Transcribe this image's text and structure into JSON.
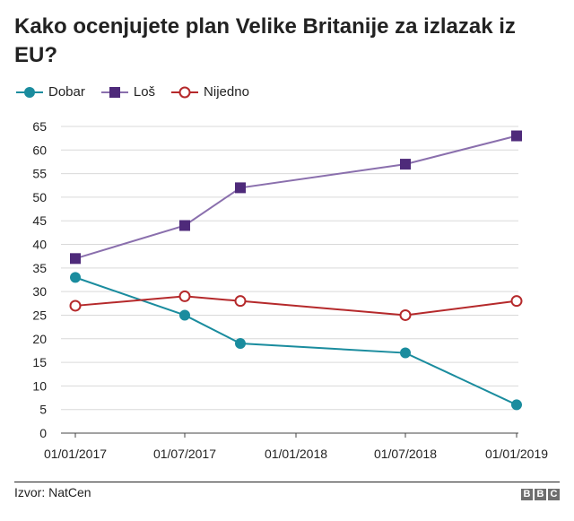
{
  "chart_data": {
    "type": "line",
    "title": "Kako ocenjujete plan Velike Britanije za izlazak iz EU?",
    "xlabel": "",
    "ylabel": "",
    "ylim": [
      0,
      65
    ],
    "yticks": [
      0,
      5,
      10,
      15,
      20,
      25,
      30,
      35,
      40,
      45,
      50,
      55,
      60,
      65
    ],
    "xticks": [
      "01/01/2017",
      "01/07/2017",
      "01/01/2018",
      "01/07/2018",
      "01/01/2019"
    ],
    "grid": true,
    "legend_position": "top-left",
    "series": [
      {
        "name": "Dobar",
        "color": "#1a8c9e",
        "marker": "circle-filled",
        "points": [
          {
            "x": "01/01/2017",
            "y": 33
          },
          {
            "x": "01/07/2017",
            "y": 25
          },
          {
            "x": "01/10/2017",
            "y": 19
          },
          {
            "x": "01/07/2018",
            "y": 17
          },
          {
            "x": "01/01/2019",
            "y": 6
          }
        ]
      },
      {
        "name": "Loš",
        "color": "#8a6fad",
        "marker_color": "#4e2a7a",
        "marker": "square",
        "points": [
          {
            "x": "01/01/2017",
            "y": 37
          },
          {
            "x": "01/07/2017",
            "y": 44
          },
          {
            "x": "01/10/2017",
            "y": 52
          },
          {
            "x": "01/07/2018",
            "y": 57
          },
          {
            "x": "01/01/2019",
            "y": 63
          }
        ]
      },
      {
        "name": "Nijedno",
        "color": "#b5292b",
        "marker": "circle-open",
        "points": [
          {
            "x": "01/01/2017",
            "y": 27
          },
          {
            "x": "01/07/2017",
            "y": 29
          },
          {
            "x": "01/10/2017",
            "y": 28
          },
          {
            "x": "01/07/2018",
            "y": 25
          },
          {
            "x": "01/01/2019",
            "y": 28
          }
        ]
      }
    ]
  },
  "footer": {
    "source": "Izvor: NatCen",
    "logo_letters": [
      "B",
      "B",
      "C"
    ]
  }
}
